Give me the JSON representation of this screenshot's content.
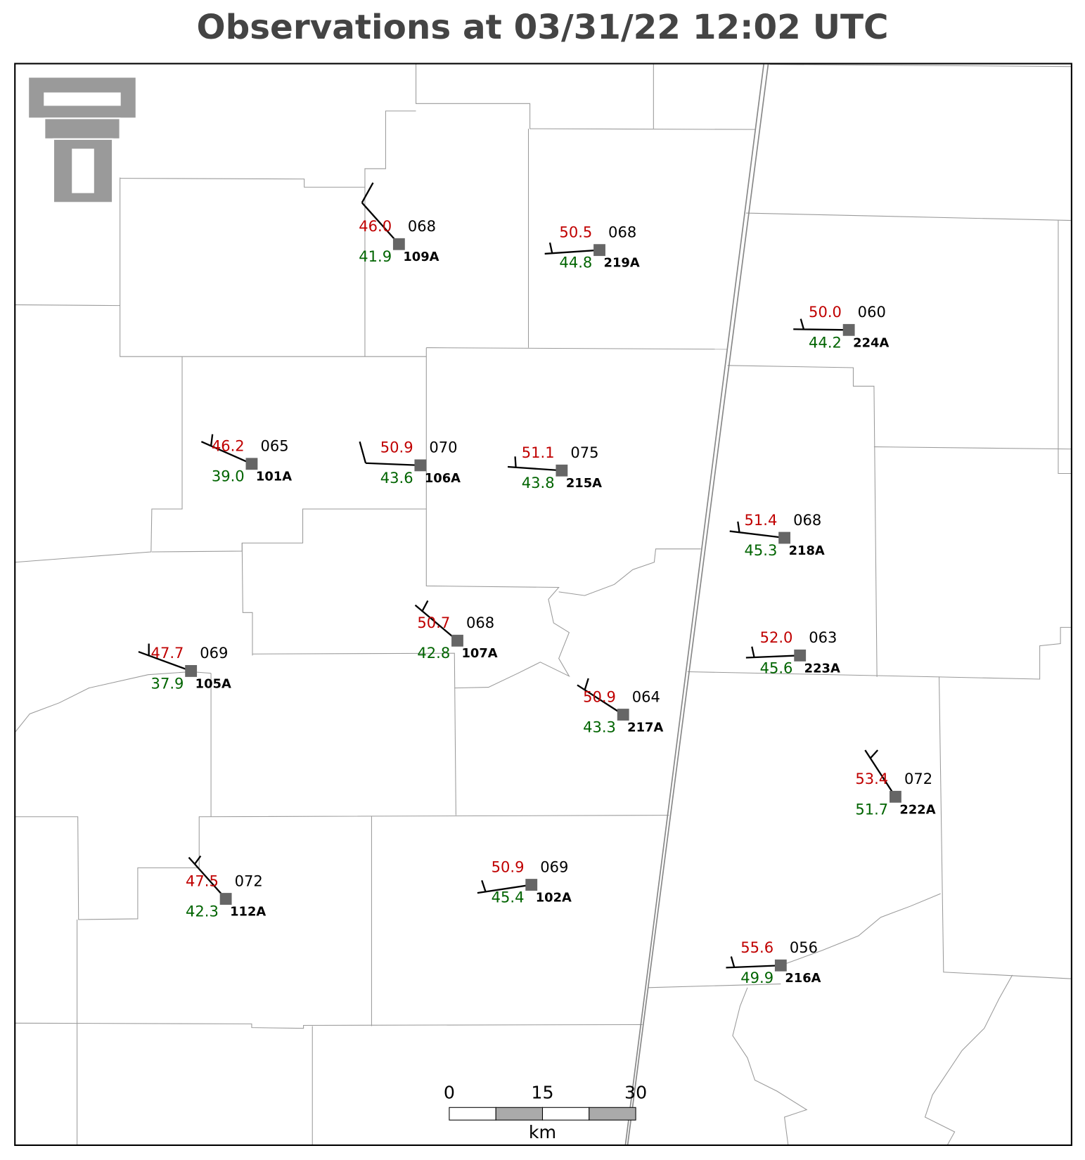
{
  "title": "Observations at 03/31/22 12:02 UTC",
  "stations": [
    {
      "id": "109A",
      "temperature": "46.0",
      "dewpoint": "41.9",
      "pressure": "068"
    },
    {
      "id": "219A",
      "temperature": "50.5",
      "dewpoint": "44.8",
      "pressure": "068"
    },
    {
      "id": "224A",
      "temperature": "50.0",
      "dewpoint": "44.2",
      "pressure": "060"
    },
    {
      "id": "101A",
      "temperature": "46.2",
      "dewpoint": "39.0",
      "pressure": "065"
    },
    {
      "id": "106A",
      "temperature": "50.9",
      "dewpoint": "43.6",
      "pressure": "070"
    },
    {
      "id": "215A",
      "temperature": "51.1",
      "dewpoint": "43.8",
      "pressure": "075"
    },
    {
      "id": "218A",
      "temperature": "51.4",
      "dewpoint": "45.3",
      "pressure": "068"
    },
    {
      "id": "107A",
      "temperature": "50.7",
      "dewpoint": "42.8",
      "pressure": "068"
    },
    {
      "id": "105A",
      "temperature": "47.7",
      "dewpoint": "37.9",
      "pressure": "069"
    },
    {
      "id": "223A",
      "temperature": "52.0",
      "dewpoint": "45.6",
      "pressure": "063"
    },
    {
      "id": "217A",
      "temperature": "50.9",
      "dewpoint": "43.3",
      "pressure": "064"
    },
    {
      "id": "222A",
      "temperature": "53.4",
      "dewpoint": "51.7",
      "pressure": "072"
    },
    {
      "id": "112A",
      "temperature": "47.5",
      "dewpoint": "42.3",
      "pressure": "072"
    },
    {
      "id": "102A",
      "temperature": "50.9",
      "dewpoint": "45.4",
      "pressure": "069"
    },
    {
      "id": "216A",
      "temperature": "55.6",
      "dewpoint": "49.9",
      "pressure": "056"
    }
  ],
  "scale_bar": {
    "labels": [
      "0",
      "15",
      "30"
    ],
    "unit": "km"
  }
}
